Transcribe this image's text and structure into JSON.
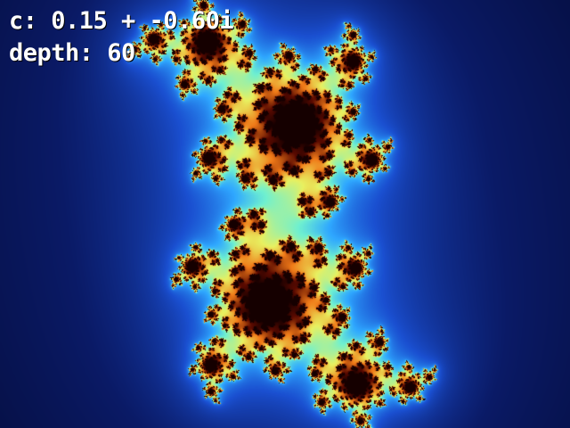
{
  "hud": {
    "c_label": "c: 0.15 + -0.60i",
    "depth_label": "depth: 60"
  },
  "fractal": {
    "type": "julia-set",
    "c_real": 0.15,
    "c_imag": -0.6,
    "max_iterations": 60,
    "palette": [
      "#02072a",
      "#0a1a66",
      "#1a4fd0",
      "#2fa8ff",
      "#6ff0d0",
      "#e8f060",
      "#f07a18",
      "#5a0a00",
      "#150000"
    ]
  }
}
